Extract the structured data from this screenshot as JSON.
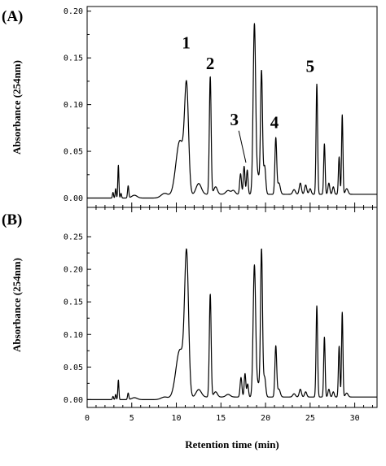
{
  "chart_data": [
    {
      "type": "line",
      "panel_label": "(A)",
      "xlabel": "",
      "ylabel": "Absorbance (254nm)",
      "xlim": [
        0,
        32.5
      ],
      "ylim": [
        -0.01,
        0.205
      ],
      "yticks": [
        0.0,
        0.05,
        0.1,
        0.15,
        0.2
      ],
      "ytick_labels": [
        "0.00",
        "0.05",
        "0.10",
        "0.15",
        "0.20"
      ],
      "baseline": 0.0,
      "peaks": [
        {
          "x": 2.9,
          "h": 0.006,
          "w": 0.06
        },
        {
          "x": 3.2,
          "h": 0.01,
          "w": 0.06
        },
        {
          "x": 3.5,
          "h": 0.035,
          "w": 0.06
        },
        {
          "x": 3.8,
          "h": 0.005,
          "w": 0.06
        },
        {
          "x": 4.6,
          "h": 0.013,
          "w": 0.07
        },
        {
          "x": 5.3,
          "h": 0.003,
          "w": 0.3
        },
        {
          "x": 8.7,
          "h": 0.005,
          "w": 0.4
        },
        {
          "x": 10.4,
          "h": 0.06,
          "w": 0.45
        },
        {
          "x": 11.15,
          "h": 0.108,
          "w": 0.22
        },
        {
          "x": 12.5,
          "h": 0.012,
          "w": 0.3
        },
        {
          "x": 13.8,
          "h": 0.126,
          "w": 0.1
        },
        {
          "x": 14.4,
          "h": 0.008,
          "w": 0.2
        },
        {
          "x": 15.8,
          "h": 0.004,
          "w": 0.25
        },
        {
          "x": 16.4,
          "h": 0.004,
          "w": 0.2
        },
        {
          "x": 17.2,
          "h": 0.022,
          "w": 0.1
        },
        {
          "x": 17.6,
          "h": 0.03,
          "w": 0.09
        },
        {
          "x": 17.95,
          "h": 0.026,
          "w": 0.09
        },
        {
          "x": 18.75,
          "h": 0.18,
          "w": 0.14
        },
        {
          "x": 19.15,
          "h": 0.02,
          "w": 0.2
        },
        {
          "x": 19.55,
          "h": 0.13,
          "w": 0.11
        },
        {
          "x": 19.9,
          "h": 0.03,
          "w": 0.12
        },
        {
          "x": 21.15,
          "h": 0.06,
          "w": 0.1
        },
        {
          "x": 21.5,
          "h": 0.012,
          "w": 0.15
        },
        {
          "x": 23.2,
          "h": 0.005,
          "w": 0.15
        },
        {
          "x": 23.9,
          "h": 0.012,
          "w": 0.12
        },
        {
          "x": 24.5,
          "h": 0.01,
          "w": 0.12
        },
        {
          "x": 25.0,
          "h": 0.006,
          "w": 0.12
        },
        {
          "x": 25.75,
          "h": 0.118,
          "w": 0.085
        },
        {
          "x": 26.6,
          "h": 0.054,
          "w": 0.08
        },
        {
          "x": 27.1,
          "h": 0.012,
          "w": 0.1
        },
        {
          "x": 27.6,
          "h": 0.008,
          "w": 0.1
        },
        {
          "x": 28.25,
          "h": 0.04,
          "w": 0.08
        },
        {
          "x": 28.6,
          "h": 0.085,
          "w": 0.075
        },
        {
          "x": 29.1,
          "h": 0.006,
          "w": 0.15
        }
      ],
      "annotations": [
        {
          "text": "1",
          "x": 11.1,
          "y": 0.16
        },
        {
          "text": "2",
          "x": 13.8,
          "y": 0.138
        },
        {
          "text": "3",
          "x": 16.5,
          "y": 0.078
        },
        {
          "text": "4",
          "x": 21.0,
          "y": 0.075
        },
        {
          "text": "5",
          "x": 25.0,
          "y": 0.135
        }
      ],
      "arrow": {
        "from": [
          17.0,
          0.072
        ],
        "to": [
          17.8,
          0.038
        ]
      }
    },
    {
      "type": "line",
      "panel_label": "(B)",
      "xlabel": "Retention time (min)",
      "ylabel": "Absorbance (254nm)",
      "xlim": [
        0,
        32.5
      ],
      "ylim": [
        -0.012,
        0.295
      ],
      "yticks": [
        0.0,
        0.05,
        0.1,
        0.15,
        0.2,
        0.25
      ],
      "ytick_labels": [
        "0.00",
        "0.05",
        "0.10",
        "0.15",
        "0.20",
        "0.25"
      ],
      "xticks": [
        0,
        5,
        10,
        15,
        20,
        25,
        30
      ],
      "xtick_labels": [
        "0",
        "5",
        "10",
        "15",
        "20",
        "25",
        "30"
      ],
      "baseline": 0.0,
      "peaks": [
        {
          "x": 2.9,
          "h": 0.005,
          "w": 0.06
        },
        {
          "x": 3.2,
          "h": 0.008,
          "w": 0.06
        },
        {
          "x": 3.5,
          "h": 0.03,
          "w": 0.06
        },
        {
          "x": 4.6,
          "h": 0.01,
          "w": 0.07
        },
        {
          "x": 5.3,
          "h": 0.003,
          "w": 0.3
        },
        {
          "x": 8.7,
          "h": 0.004,
          "w": 0.4
        },
        {
          "x": 10.4,
          "h": 0.075,
          "w": 0.45
        },
        {
          "x": 11.15,
          "h": 0.21,
          "w": 0.22
        },
        {
          "x": 12.5,
          "h": 0.012,
          "w": 0.3
        },
        {
          "x": 13.8,
          "h": 0.158,
          "w": 0.1
        },
        {
          "x": 14.4,
          "h": 0.008,
          "w": 0.2
        },
        {
          "x": 15.8,
          "h": 0.004,
          "w": 0.25
        },
        {
          "x": 17.25,
          "h": 0.03,
          "w": 0.1
        },
        {
          "x": 17.7,
          "h": 0.036,
          "w": 0.09
        },
        {
          "x": 18.0,
          "h": 0.02,
          "w": 0.09
        },
        {
          "x": 18.75,
          "h": 0.2,
          "w": 0.14
        },
        {
          "x": 19.15,
          "h": 0.02,
          "w": 0.2
        },
        {
          "x": 19.55,
          "h": 0.225,
          "w": 0.11
        },
        {
          "x": 19.9,
          "h": 0.03,
          "w": 0.12
        },
        {
          "x": 21.15,
          "h": 0.078,
          "w": 0.1
        },
        {
          "x": 21.5,
          "h": 0.012,
          "w": 0.15
        },
        {
          "x": 23.2,
          "h": 0.005,
          "w": 0.15
        },
        {
          "x": 23.9,
          "h": 0.012,
          "w": 0.12
        },
        {
          "x": 24.5,
          "h": 0.008,
          "w": 0.12
        },
        {
          "x": 25.75,
          "h": 0.14,
          "w": 0.085
        },
        {
          "x": 26.6,
          "h": 0.092,
          "w": 0.08
        },
        {
          "x": 27.1,
          "h": 0.012,
          "w": 0.1
        },
        {
          "x": 27.6,
          "h": 0.008,
          "w": 0.1
        },
        {
          "x": 28.25,
          "h": 0.078,
          "w": 0.08
        },
        {
          "x": 28.6,
          "h": 0.13,
          "w": 0.075
        },
        {
          "x": 29.1,
          "h": 0.006,
          "w": 0.15
        }
      ]
    }
  ]
}
